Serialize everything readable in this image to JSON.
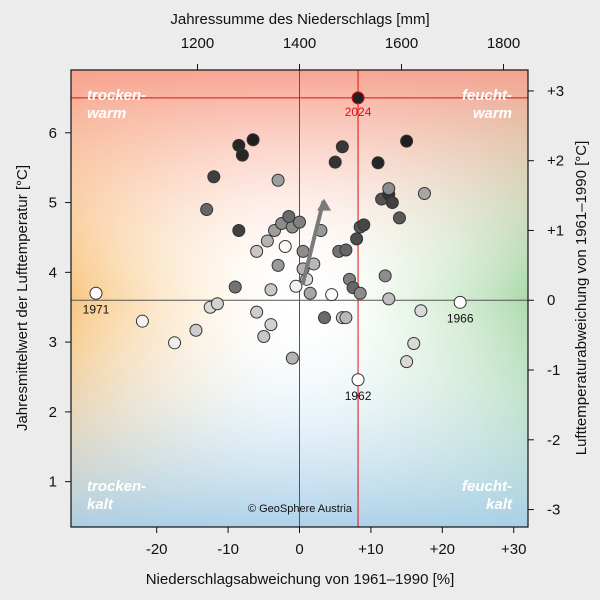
{
  "chart_data": {
    "type": "scatter",
    "title": "",
    "xlabel": "Niederschlagsabweichung von 1961–1990 [%]",
    "ylabel": "Jahresmittelwert der Lufttemperatur [°C]",
    "x2label": "Jahressumme des Niederschlags [mm]",
    "y2label": "Lufttemperaturabweichung von 1961–1990 [°C]",
    "xlim": [
      -32,
      32
    ],
    "ylim": [
      0.35,
      6.9
    ],
    "x_ticks": [
      -20,
      -10,
      0,
      10,
      20,
      30
    ],
    "x_tick_labels": [
      "-20",
      "-10",
      "0",
      "+10",
      "+20",
      "+30"
    ],
    "y_ticks": [
      1,
      2,
      3,
      4,
      5,
      6
    ],
    "y_tick_labels": [
      "1",
      "2",
      "3",
      "4",
      "5",
      "6"
    ],
    "x2_ticks": [
      1200,
      1400,
      1600,
      1800
    ],
    "x2_tick_labels": [
      "1200",
      "1400",
      "1600",
      "1800"
    ],
    "x2_reference_mm": 1400,
    "x2_mm_per_percent": 14,
    "y2_ticks": [
      -3,
      -2,
      -1,
      0,
      1,
      2,
      3
    ],
    "y2_tick_labels": [
      "-3",
      "-2",
      "-1",
      "0",
      "+1",
      "+2",
      "+3"
    ],
    "y2_reference_temp": 3.6,
    "corner_labels": {
      "top_left": [
        "trocken-",
        "warm"
      ],
      "top_right": [
        "feucht-",
        "warm"
      ],
      "bottom_left": [
        "trocken-",
        "kalt"
      ],
      "bottom_right": [
        "feucht-",
        "kalt"
      ]
    },
    "credit": "© GeoSphere Austria",
    "highlight": {
      "year": "2024",
      "x": 8.2,
      "y": 6.5,
      "color": "#e01010"
    },
    "labeled_points": [
      {
        "year": "1971",
        "x": -28.5,
        "y": 3.7
      },
      {
        "year": "1966",
        "x": 22.5,
        "y": 3.57
      },
      {
        "year": "1962",
        "x": 8.2,
        "y": 2.46
      }
    ],
    "trend_arrow": [
      [
        0.5,
        3.85
      ],
      [
        2.3,
        4.6
      ],
      [
        3.3,
        5.0
      ]
    ],
    "series": [
      {
        "name": "years",
        "points": [
          {
            "x": -28.5,
            "y": 3.7,
            "shade": 1.0
          },
          {
            "x": -22.0,
            "y": 3.3,
            "shade": 0.95
          },
          {
            "x": -17.5,
            "y": 2.99,
            "shade": 0.93
          },
          {
            "x": -14.5,
            "y": 3.17,
            "shade": 0.8
          },
          {
            "x": -12.5,
            "y": 3.5,
            "shade": 0.85
          },
          {
            "x": -11.5,
            "y": 3.55,
            "shade": 0.82
          },
          {
            "x": -13.0,
            "y": 4.9,
            "shade": 0.4
          },
          {
            "x": -12.0,
            "y": 5.37,
            "shade": 0.25
          },
          {
            "x": -9.0,
            "y": 3.79,
            "shade": 0.45
          },
          {
            "x": -8.5,
            "y": 4.6,
            "shade": 0.25
          },
          {
            "x": -8.5,
            "y": 5.82,
            "shade": 0.15
          },
          {
            "x": -8.0,
            "y": 5.68,
            "shade": 0.15
          },
          {
            "x": -6.5,
            "y": 5.9,
            "shade": 0.12
          },
          {
            "x": -6.0,
            "y": 4.3,
            "shade": 0.78
          },
          {
            "x": -6.0,
            "y": 3.43,
            "shade": 0.8
          },
          {
            "x": -5.0,
            "y": 3.08,
            "shade": 0.78
          },
          {
            "x": -4.0,
            "y": 3.25,
            "shade": 0.82
          },
          {
            "x": -4.0,
            "y": 3.75,
            "shade": 0.78
          },
          {
            "x": -4.5,
            "y": 4.45,
            "shade": 0.7
          },
          {
            "x": -3.5,
            "y": 4.6,
            "shade": 0.62
          },
          {
            "x": -3.0,
            "y": 5.32,
            "shade": 0.62
          },
          {
            "x": -3.0,
            "y": 4.1,
            "shade": 0.6
          },
          {
            "x": -2.5,
            "y": 4.7,
            "shade": 0.55
          },
          {
            "x": -2.0,
            "y": 4.37,
            "shade": 0.98
          },
          {
            "x": -1.0,
            "y": 4.65,
            "shade": 0.55
          },
          {
            "x": -1.5,
            "y": 4.8,
            "shade": 0.42
          },
          {
            "x": -1.0,
            "y": 2.77,
            "shade": 0.7
          },
          {
            "x": -0.5,
            "y": 3.8,
            "shade": 0.95
          },
          {
            "x": 0.0,
            "y": 4.72,
            "shade": 0.5
          },
          {
            "x": 0.5,
            "y": 4.3,
            "shade": 0.55
          },
          {
            "x": 0.5,
            "y": 4.05,
            "shade": 0.7
          },
          {
            "x": 1.0,
            "y": 3.9,
            "shade": 0.85
          },
          {
            "x": 1.5,
            "y": 3.7,
            "shade": 0.65
          },
          {
            "x": 2.0,
            "y": 4.12,
            "shade": 0.72
          },
          {
            "x": 3.0,
            "y": 4.6,
            "shade": 0.6
          },
          {
            "x": 3.5,
            "y": 3.35,
            "shade": 0.42
          },
          {
            "x": 4.5,
            "y": 3.68,
            "shade": 0.98
          },
          {
            "x": 5.0,
            "y": 5.58,
            "shade": 0.2
          },
          {
            "x": 5.5,
            "y": 4.3,
            "shade": 0.45
          },
          {
            "x": 6.0,
            "y": 5.8,
            "shade": 0.22
          },
          {
            "x": 6.0,
            "y": 3.35,
            "shade": 0.78
          },
          {
            "x": 6.5,
            "y": 4.32,
            "shade": 0.4
          },
          {
            "x": 6.5,
            "y": 3.35,
            "shade": 0.72
          },
          {
            "x": 7.0,
            "y": 3.9,
            "shade": 0.5
          },
          {
            "x": 7.5,
            "y": 3.78,
            "shade": 0.4
          },
          {
            "x": 8.0,
            "y": 4.48,
            "shade": 0.3
          },
          {
            "x": 8.2,
            "y": 2.46,
            "shade": 1.0
          },
          {
            "x": 8.5,
            "y": 3.7,
            "shade": 0.55
          },
          {
            "x": 8.5,
            "y": 4.65,
            "shade": 0.35
          },
          {
            "x": 9.0,
            "y": 4.68,
            "shade": 0.28
          },
          {
            "x": 11.0,
            "y": 5.57,
            "shade": 0.15
          },
          {
            "x": 11.5,
            "y": 5.05,
            "shade": 0.32
          },
          {
            "x": 12.0,
            "y": 3.95,
            "shade": 0.55
          },
          {
            "x": 12.5,
            "y": 3.62,
            "shade": 0.75
          },
          {
            "x": 12.5,
            "y": 5.12,
            "shade": 0.2
          },
          {
            "x": 12.5,
            "y": 5.2,
            "shade": 0.55
          },
          {
            "x": 13.0,
            "y": 5.0,
            "shade": 0.25
          },
          {
            "x": 14.0,
            "y": 4.78,
            "shade": 0.35
          },
          {
            "x": 15.0,
            "y": 5.88,
            "shade": 0.12
          },
          {
            "x": 15.0,
            "y": 2.72,
            "shade": 0.85
          },
          {
            "x": 16.0,
            "y": 2.98,
            "shade": 0.85
          },
          {
            "x": 17.0,
            "y": 3.45,
            "shade": 0.85
          },
          {
            "x": 17.5,
            "y": 5.13,
            "shade": 0.65
          },
          {
            "x": 22.5,
            "y": 3.57,
            "shade": 1.0
          },
          {
            "x": 8.2,
            "y": 6.5,
            "shade": 0.0
          }
        ]
      }
    ]
  }
}
